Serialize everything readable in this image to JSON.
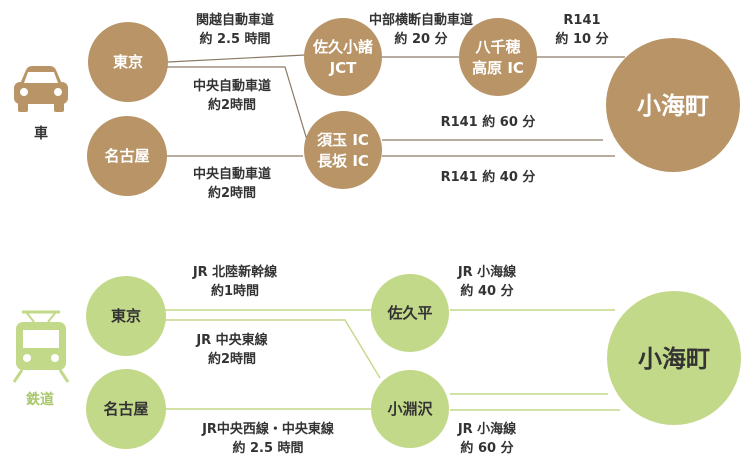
{
  "colors": {
    "car": "#b89467",
    "rail": "#c3d98a",
    "car_icon": "#b89467",
    "rail_icon": "#c3d98a",
    "rail_label": "#a9c86a",
    "text": "#333333",
    "line_car": "#8a7a66",
    "line_rail": "#c3d98a"
  },
  "car": {
    "mode_label": "車",
    "icon": "car-icon",
    "nodes": {
      "tokyo": "東京",
      "nagoya": "名古屋",
      "saku_line1": "佐久小諸",
      "saku_line2": "JCT",
      "yachiho_line1": "八千穂",
      "yachiho_line2": "高原 IC",
      "sutama_line1": "須玉 IC",
      "sutama_line2": "長坂 IC",
      "koumi": "小海町"
    },
    "routes": {
      "kanetsu_line1": "関越自動車道",
      "kanetsu_line2": "約 2.5 時間",
      "chubu_line1": "中部横断自動車道",
      "chubu_line2": "約 20 分",
      "r141a_line1": "R141",
      "r141a_line2": "約 10 分",
      "chuo1_line1": "中央自動車道",
      "chuo1_line2": "約2時間",
      "r141b": "R141 約 60 分",
      "chuo2_line1": "中央自動車道",
      "chuo2_line2": "約2時間",
      "r141c": "R141 約 40 分"
    }
  },
  "rail": {
    "mode_label": "鉄道",
    "icon": "train-icon",
    "nodes": {
      "tokyo": "東京",
      "nagoya": "名古屋",
      "sakudaira": "佐久平",
      "kobuchizawa": "小淵沢",
      "koumi": "小海町"
    },
    "routes": {
      "hokuriku_line1": "JR 北陸新幹線",
      "hokuriku_line2": "約1時間",
      "koumi1_line1": "JR 小海線",
      "koumi1_line2": "約 40 分",
      "chuo_line1": "JR 中央東線",
      "chuo_line2": "約2時間",
      "chuowest_line1": "JR中央西線・中央東線",
      "chuowest_line2": "約 2.5 時間",
      "koumi2_line1": "JR 小海線",
      "koumi2_line2": "約 60 分"
    }
  }
}
